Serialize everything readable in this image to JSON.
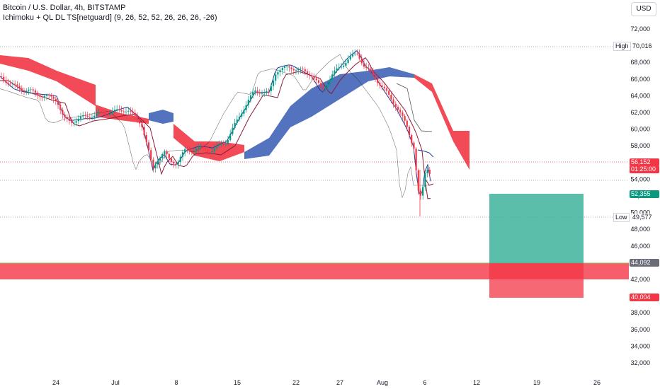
{
  "legend": {
    "title": "Bitcoin / U.S. Dollar, 4h, BITSTAMP",
    "indicator": "Ichimoku + QL DL TS[netguard] (9, 26, 52, 52, 26, 26, 26, -26)"
  },
  "currency_button": "USD",
  "y_axis": {
    "ticks": [
      "72,000",
      "70,000",
      "68,000",
      "66,000",
      "64,000",
      "62,000",
      "60,000",
      "58,000",
      "56,000",
      "54,000",
      "52,000",
      "50,000",
      "48,000",
      "46,000",
      "44,000",
      "42,000",
      "40,000",
      "38,000",
      "36,000",
      "34,000",
      "32,000"
    ]
  },
  "x_axis": {
    "ticks": [
      "24",
      "Jul",
      "8",
      "15",
      "22",
      "27",
      "Aug",
      "6",
      "12",
      "19",
      "26"
    ]
  },
  "markers": {
    "high_label": "High",
    "high_value": "70,016",
    "low_label": "Low",
    "low_value": "49,577",
    "last_price": "56,152",
    "countdown": "01:25:00",
    "target_price": "52,355",
    "zone_top": "44,092",
    "stop_price": "40,004"
  },
  "colors": {
    "up": "#089981",
    "down": "#f23645",
    "kumo_bull": "#4064b8",
    "kumo_bear": "#f23645",
    "tenkan": "#1e3a9c",
    "kijun": "#8b1c3a",
    "chikou": "#222222",
    "target_zone": "#3db39c",
    "stop_zone": "#f23645"
  }
}
